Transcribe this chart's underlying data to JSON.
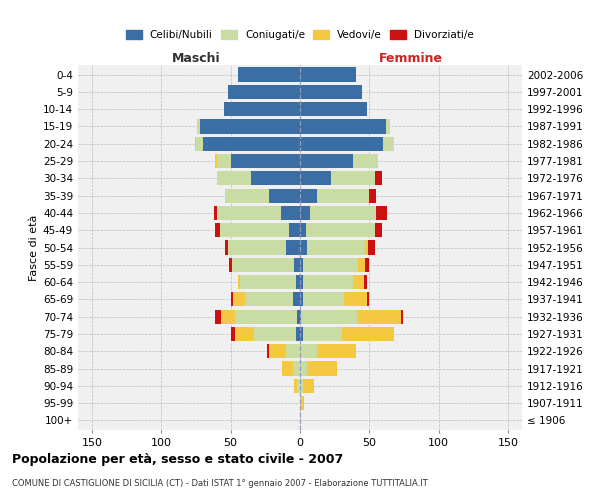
{
  "age_groups": [
    "100+",
    "95-99",
    "90-94",
    "85-89",
    "80-84",
    "75-79",
    "70-74",
    "65-69",
    "60-64",
    "55-59",
    "50-54",
    "45-49",
    "40-44",
    "35-39",
    "30-34",
    "25-29",
    "20-24",
    "15-19",
    "10-14",
    "5-9",
    "0-4"
  ],
  "birth_years": [
    "≤ 1906",
    "1907-1911",
    "1912-1916",
    "1917-1921",
    "1922-1926",
    "1927-1931",
    "1932-1936",
    "1937-1941",
    "1942-1946",
    "1947-1951",
    "1952-1956",
    "1957-1961",
    "1962-1966",
    "1967-1971",
    "1972-1976",
    "1977-1981",
    "1982-1986",
    "1987-1991",
    "1992-1996",
    "1997-2001",
    "2002-2006"
  ],
  "male_celibi": [
    0,
    0,
    0,
    0,
    0,
    3,
    2,
    5,
    3,
    4,
    10,
    8,
    14,
    22,
    35,
    50,
    70,
    72,
    55,
    52,
    45
  ],
  "male_coniugati": [
    0,
    0,
    2,
    5,
    10,
    30,
    45,
    35,
    40,
    45,
    42,
    50,
    46,
    32,
    25,
    10,
    5,
    2,
    0,
    0,
    0
  ],
  "male_vedovi": [
    0,
    0,
    2,
    8,
    12,
    14,
    10,
    8,
    2,
    0,
    0,
    0,
    0,
    0,
    0,
    1,
    1,
    0,
    0,
    0,
    0
  ],
  "male_divorziati": [
    0,
    0,
    0,
    0,
    2,
    3,
    4,
    2,
    0,
    2,
    2,
    3,
    2,
    0,
    0,
    0,
    0,
    0,
    0,
    0,
    0
  ],
  "fem_nubili": [
    0,
    0,
    0,
    0,
    0,
    2,
    1,
    2,
    2,
    2,
    5,
    4,
    7,
    12,
    22,
    38,
    60,
    62,
    48,
    45,
    40
  ],
  "fem_coniugate": [
    0,
    1,
    2,
    5,
    12,
    28,
    40,
    30,
    36,
    40,
    42,
    50,
    48,
    38,
    32,
    18,
    8,
    3,
    0,
    0,
    0
  ],
  "fem_vedove": [
    0,
    2,
    8,
    22,
    28,
    38,
    32,
    16,
    8,
    5,
    2,
    0,
    0,
    0,
    0,
    0,
    0,
    0,
    0,
    0,
    0
  ],
  "fem_divorziate": [
    0,
    0,
    0,
    0,
    0,
    0,
    1,
    2,
    2,
    3,
    5,
    5,
    8,
    5,
    5,
    0,
    0,
    0,
    0,
    0,
    0
  ],
  "color_celibi": "#3a6ea5",
  "color_coniugati": "#c8dca4",
  "color_vedovi": "#f5c842",
  "color_divorziati": "#cc1111",
  "bg_color": "#f0f0f0",
  "xlim": 160,
  "xticks": [
    -150,
    -100,
    -50,
    0,
    50,
    100,
    150
  ],
  "title": "Popolazione per età, sesso e stato civile - 2007",
  "subtitle": "COMUNE DI CASTIGLIONE DI SICILIA (CT) - Dati ISTAT 1° gennaio 2007 - Elaborazione TUTTITALIA.IT",
  "ylabel_left": "Fasce di età",
  "label_maschi": "Maschi",
  "label_femmine": "Femmine",
  "legend_labels": [
    "Celibi/Nubili",
    "Coniugati/e",
    "Vedovi/e",
    "Divorziati/e"
  ]
}
